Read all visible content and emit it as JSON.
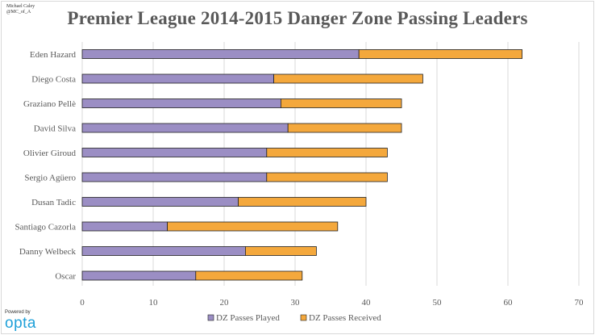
{
  "credit": {
    "line1": "Michael Caley",
    "line2": "@MC_of_A"
  },
  "logo": {
    "top": "Powered by",
    "word": "opta"
  },
  "colors": {
    "played": "#9b8ec4",
    "received": "#f4a83c",
    "outline": "#222222",
    "grid": "#d9d9d9",
    "text": "#595959"
  },
  "chart_data": {
    "type": "bar",
    "orientation": "horizontal",
    "stacked": true,
    "title": "Premier League 2014-2015 Danger Zone Passing Leaders",
    "xlabel": "",
    "ylabel": "",
    "categories": [
      "Eden Hazard",
      "Diego Costa",
      "Graziano Pellè",
      "David Silva",
      "Olivier Giroud",
      "Sergio Agüero",
      "Dusan Tadic",
      "Santiago Cazorla",
      "Danny Welbeck",
      "Oscar"
    ],
    "series": [
      {
        "name": "DZ Passes Played",
        "values": [
          39,
          27,
          28,
          29,
          26,
          26,
          22,
          12,
          23,
          16
        ]
      },
      {
        "name": "DZ Passes Received",
        "values": [
          23,
          21,
          17,
          16,
          17,
          17,
          18,
          24,
          10,
          15
        ]
      }
    ],
    "xlim": [
      0,
      70
    ],
    "xticks": [
      0,
      10,
      20,
      30,
      40,
      50,
      60,
      70
    ],
    "grid": true,
    "legend_position": "bottom"
  }
}
